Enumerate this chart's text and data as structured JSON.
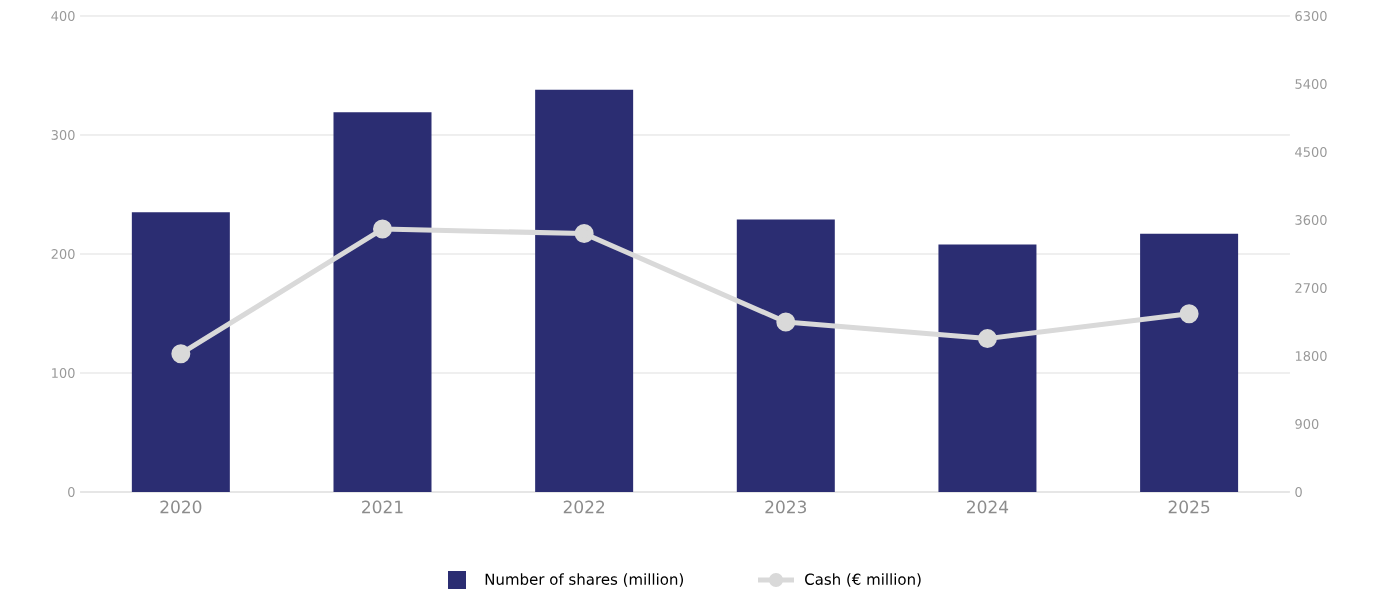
{
  "chart_data": {
    "type": "bar",
    "categories": [
      "2020",
      "2021",
      "2022",
      "2023",
      "2024",
      "2025"
    ],
    "series": [
      {
        "name": "Number of shares (million)",
        "color": "#2b2d72",
        "values": [
          235,
          319,
          338,
          229,
          208,
          217
        ]
      },
      {
        "name": "Cash (€ million)",
        "type": "line",
        "axis": "y2",
        "color": "#d9d9d9",
        "marker": "circle",
        "values": [
          1830,
          3480,
          3420,
          2250,
          2030,
          2360
        ]
      }
    ],
    "ylim": [
      0,
      400
    ],
    "yticks": [
      0,
      100,
      200,
      300,
      400
    ],
    "y2lim": [
      0,
      6300
    ],
    "y2ticks": [
      0,
      900,
      1800,
      2700,
      3600,
      4500,
      5400,
      6300
    ],
    "grid": "y",
    "legend": "bottom"
  }
}
